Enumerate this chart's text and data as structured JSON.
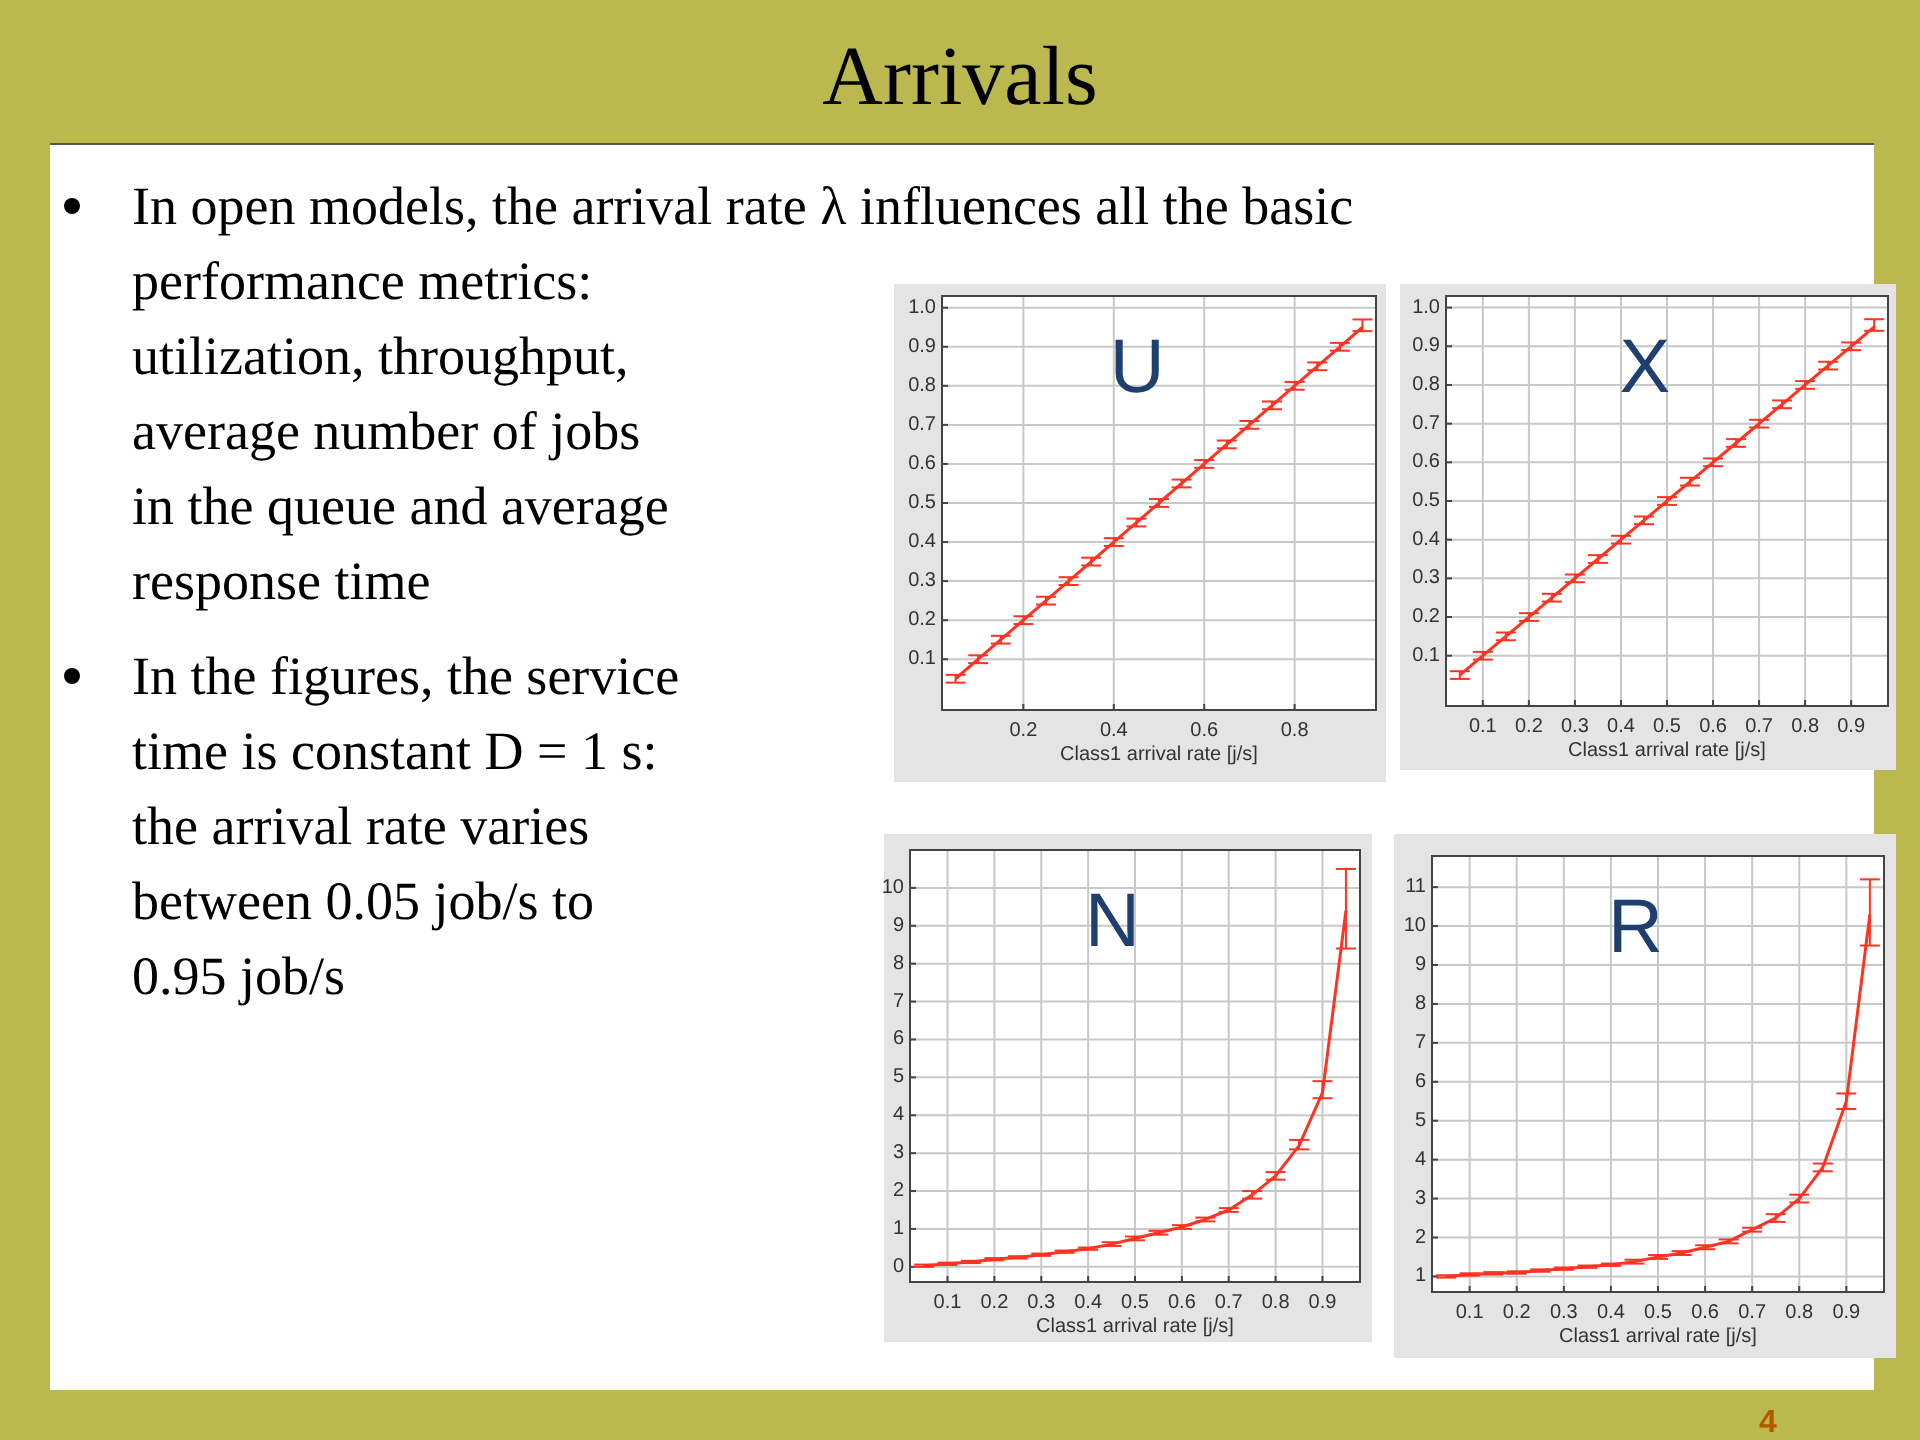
{
  "chart_data": [
    {
      "type": "other",
      "title": "Arrivals",
      "annotations": [
        "In open models, the arrival rate λ influences all the basic\nperformance metrics:\nutilization, throughput,\naverage number of jobs\nin the queue and average\nresponse time",
        "In the figures, the service\ntime is constant D = 1 s:\nthe arrival rate varies\nbetween 0.05 job/s to\n0.95 job/s",
        "4"
      ]
    },
    {
      "type": "line",
      "title": "U",
      "xlabel": "Class1 arrival rate [j/s]",
      "color": "#ff3322",
      "grid": true,
      "xlim": [
        0.02,
        0.98
      ],
      "ylim": [
        -0.03,
        1.03
      ],
      "xticks": [
        0.2,
        0.4,
        0.6,
        0.8
      ],
      "yticks": [
        0.1,
        0.2,
        0.3,
        0.4,
        0.5,
        0.6,
        0.7,
        0.8,
        0.9,
        {
          "value": 1,
          "label": "1.0"
        }
      ],
      "x": [
        0.05,
        0.1,
        0.15,
        0.2,
        0.25,
        0.3,
        0.35,
        0.4,
        0.45,
        0.5,
        0.55,
        0.6,
        0.65,
        0.7,
        0.75,
        0.8,
        0.85,
        0.9,
        0.95
      ],
      "values": [
        0.05,
        0.1,
        0.15,
        0.2,
        0.25,
        0.3,
        0.35,
        0.4,
        0.45,
        0.5,
        0.55,
        0.6,
        0.65,
        0.7,
        0.75,
        0.8,
        0.85,
        0.9,
        0.95
      ],
      "errors": [
        0.01,
        0.01,
        0.01,
        0.01,
        0.01,
        0.01,
        0.01,
        0.01,
        0.01,
        0.01,
        0.01,
        0.01,
        0.01,
        0.01,
        0.01,
        0.01,
        0.01,
        0.01,
        [
          0.94,
          0.97
        ]
      ]
    },
    {
      "type": "line",
      "title": "X",
      "xlabel": "Class1 arrival rate [j/s]",
      "color": "#ff3322",
      "grid": true,
      "xlim": [
        0.02,
        0.98
      ],
      "ylim": [
        -0.03,
        1.03
      ],
      "xticks": [
        0.1,
        0.2,
        0.3,
        0.4,
        0.5,
        0.6,
        0.7,
        0.8,
        0.9
      ],
      "yticks": [
        0.1,
        0.2,
        0.3,
        0.4,
        0.5,
        0.6,
        0.7,
        0.8,
        0.9,
        {
          "value": 1,
          "label": "1.0"
        }
      ],
      "x": [
        0.05,
        0.1,
        0.15,
        0.2,
        0.25,
        0.3,
        0.35,
        0.4,
        0.45,
        0.5,
        0.55,
        0.6,
        0.65,
        0.7,
        0.75,
        0.8,
        0.85,
        0.9,
        0.95
      ],
      "values": [
        0.05,
        0.1,
        0.15,
        0.2,
        0.25,
        0.3,
        0.35,
        0.4,
        0.45,
        0.5,
        0.55,
        0.6,
        0.65,
        0.7,
        0.75,
        0.8,
        0.85,
        0.9,
        0.95
      ],
      "errors": [
        0.01,
        0.01,
        0.01,
        0.01,
        0.01,
        0.01,
        0.01,
        0.01,
        0.01,
        0.01,
        0.01,
        0.01,
        0.01,
        0.01,
        0.01,
        0.01,
        0.01,
        0.01,
        [
          0.94,
          0.97
        ]
      ]
    },
    {
      "type": "line",
      "title": "N",
      "xlabel": "Class1 arrival rate [j/s]",
      "color": "#ff3322",
      "grid": true,
      "xlim": [
        0.02,
        0.98
      ],
      "ylim": [
        -0.4,
        11
      ],
      "xticks": [
        0.1,
        0.2,
        0.3,
        0.4,
        0.5,
        0.6,
        0.7,
        0.8,
        0.9
      ],
      "yticks": [
        0,
        1,
        2,
        3,
        4,
        5,
        6,
        7,
        8,
        9,
        10
      ],
      "x": [
        0.05,
        0.1,
        0.15,
        0.2,
        0.25,
        0.3,
        0.35,
        0.4,
        0.45,
        0.5,
        0.55,
        0.6,
        0.65,
        0.7,
        0.75,
        0.8,
        0.85,
        0.9,
        0.95
      ],
      "values": [
        0.03,
        0.08,
        0.13,
        0.2,
        0.25,
        0.32,
        0.4,
        0.48,
        0.6,
        0.75,
        0.9,
        1.05,
        1.25,
        1.5,
        1.9,
        2.4,
        3.2,
        4.6,
        9.4
      ],
      "errors": [
        0.03,
        0.03,
        0.03,
        0.03,
        0.03,
        0.03,
        0.03,
        0.03,
        0.05,
        0.05,
        0.05,
        0.05,
        0.05,
        0.05,
        0.1,
        [
          2.3,
          2.5
        ],
        [
          3.1,
          3.35
        ],
        [
          4.45,
          4.9
        ],
        [
          8.4,
          10.5
        ]
      ]
    },
    {
      "type": "line",
      "title": "R",
      "xlabel": "Class1 arrival rate [j/s]",
      "color": "#ff3322",
      "grid": true,
      "xlim": [
        0.02,
        0.98
      ],
      "ylim": [
        0.6,
        11.8
      ],
      "xticks": [
        0.1,
        0.2,
        0.3,
        0.4,
        0.5,
        0.6,
        0.7,
        0.8,
        0.9
      ],
      "yticks": [
        1,
        2,
        3,
        4,
        5,
        6,
        7,
        8,
        9,
        10,
        11
      ],
      "x": [
        0.05,
        0.1,
        0.15,
        0.2,
        0.25,
        0.3,
        0.35,
        0.4,
        0.45,
        0.5,
        0.55,
        0.6,
        0.65,
        0.7,
        0.75,
        0.8,
        0.85,
        0.9,
        0.95
      ],
      "values": [
        1.0,
        1.05,
        1.08,
        1.1,
        1.15,
        1.2,
        1.25,
        1.3,
        1.38,
        1.5,
        1.6,
        1.75,
        1.9,
        2.2,
        2.5,
        3.0,
        3.8,
        5.5,
        10.3
      ],
      "errors": [
        0.03,
        0.03,
        0.03,
        0.03,
        0.03,
        0.03,
        0.03,
        0.03,
        0.05,
        0.05,
        0.05,
        0.05,
        0.05,
        0.05,
        0.1,
        [
          2.9,
          3.1
        ],
        [
          3.7,
          3.9
        ],
        [
          5.3,
          5.7
        ],
        [
          9.5,
          11.2
        ]
      ]
    }
  ]
}
